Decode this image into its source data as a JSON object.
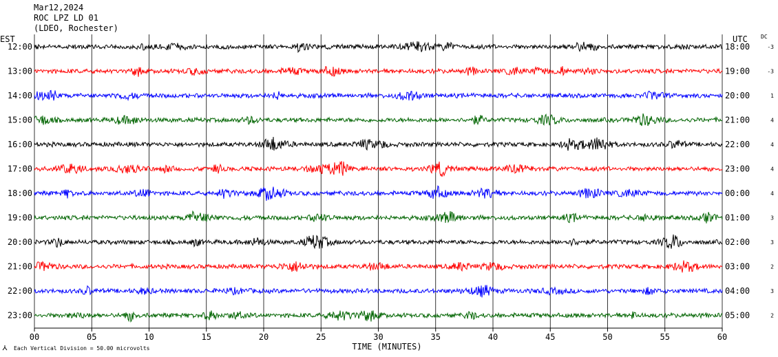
{
  "header": {
    "date": "Mar12,2024",
    "station": "ROC LPZ LD 01",
    "network": "(LDEO, Rochester)"
  },
  "chart_data": {
    "type": "line",
    "title": "",
    "left_axis_label": "EST",
    "right_axis_label": "UTC",
    "dc_label": "DC",
    "xlabel": "TIME (MINUTES)",
    "xlim": [
      0,
      60
    ],
    "x_ticks": [
      "00",
      "05",
      "10",
      "15",
      "20",
      "25",
      "30",
      "35",
      "40",
      "45",
      "50",
      "55",
      "60"
    ],
    "footer_note": "Each Vertical Division =   50.00 microvolts",
    "grid": true,
    "colors": [
      "#000000",
      "#ff0000",
      "#0000ff",
      "#006400"
    ],
    "rows": [
      {
        "est": "12:00",
        "utc": "18:00",
        "dc": "-3"
      },
      {
        "est": "13:00",
        "utc": "19:00",
        "dc": "-3"
      },
      {
        "est": "14:00",
        "utc": "20:00",
        "dc": "1"
      },
      {
        "est": "15:00",
        "utc": "21:00",
        "dc": "4"
      },
      {
        "est": "16:00",
        "utc": "22:00",
        "dc": "4"
      },
      {
        "est": "17:00",
        "utc": "23:00",
        "dc": "4"
      },
      {
        "est": "18:00",
        "utc": "00:00",
        "dc": "4"
      },
      {
        "est": "19:00",
        "utc": "01:00",
        "dc": "3"
      },
      {
        "est": "20:00",
        "utc": "02:00",
        "dc": "3"
      },
      {
        "est": "21:00",
        "utc": "03:00",
        "dc": "2"
      },
      {
        "est": "22:00",
        "utc": "04:00",
        "dc": "3"
      },
      {
        "est": "23:00",
        "utc": "05:00",
        "dc": "2"
      }
    ]
  }
}
